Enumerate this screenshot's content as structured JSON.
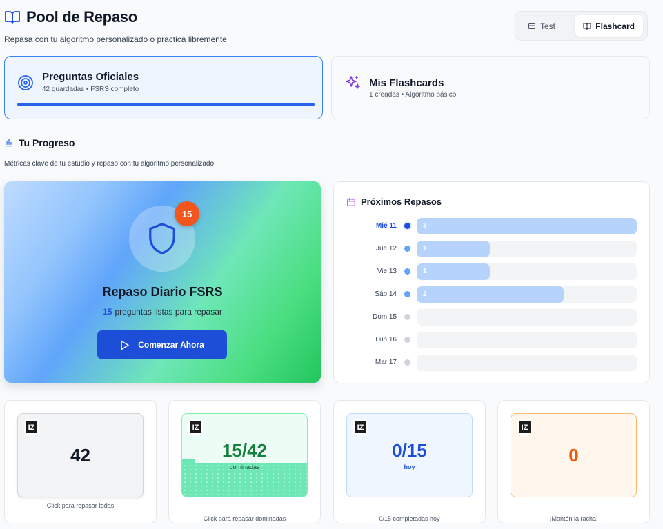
{
  "header": {
    "title": "Pool de Repaso",
    "subtitle": "Repasa con tu algoritmo personalizado o practica libremente",
    "icon": "book-open-icon"
  },
  "mode_toggle": {
    "options": [
      {
        "label": "Test",
        "icon": "card-icon",
        "active": false
      },
      {
        "label": "Flashcard",
        "icon": "book-open-icon",
        "active": true
      }
    ]
  },
  "sources": [
    {
      "name": "Preguntas Oficiales",
      "meta": "42 guardadas • FSRS completo",
      "icon": "target-icon",
      "active": true,
      "progress": 1.0,
      "accent": "#3b82f6"
    },
    {
      "name": "Mis Flashcards",
      "meta": "1 creadas • Algoritmo básico",
      "icon": "sparkles-icon",
      "active": false,
      "accent": "#7c3aed"
    }
  ],
  "progress": {
    "title": "Tu Progreso",
    "icon": "bar-chart-icon",
    "description": "Métricas clave de tu estudio y repaso con tu algoritmo personalizado"
  },
  "daily_review": {
    "badge": "15",
    "icon": "shield-icon",
    "title": "Repaso Diario FSRS",
    "count": "15",
    "subtitle_text": "preguntas listas para repasar",
    "button_label": "Comenzar Ahora",
    "button_icon": "play-icon"
  },
  "upcoming": {
    "title": "Próximos Repasos",
    "icon": "calendar-icon",
    "max": 3,
    "days": [
      {
        "day": "Mié 11",
        "count": 3,
        "label": "3",
        "today": true
      },
      {
        "day": "Jue 12",
        "count": 1,
        "label": "1",
        "today": false
      },
      {
        "day": "Vie 13",
        "count": 1,
        "label": "1",
        "today": false
      },
      {
        "day": "Sáb 14",
        "count": 2,
        "label": "2",
        "today": false
      },
      {
        "day": "Dom 15",
        "count": 0,
        "label": "",
        "today": false
      },
      {
        "day": "Lun 16",
        "count": 0,
        "label": "",
        "today": false
      },
      {
        "day": "Mar 17",
        "count": 0,
        "label": "",
        "today": false
      }
    ]
  },
  "stats": [
    {
      "logo": "IZ",
      "value": "42",
      "caption": "Click para repasar todas"
    },
    {
      "logo": "IZ",
      "value": "15/42",
      "sub": "dominadas",
      "caption": "Click para repasar dominadas",
      "fraction": 0.357
    },
    {
      "logo": "IZ",
      "value": "0/15",
      "sub": "hoy",
      "caption": "0/15 completadas hoy"
    },
    {
      "logo": "IZ",
      "value": "0",
      "caption": "¡Mantén la racha!"
    }
  ]
}
